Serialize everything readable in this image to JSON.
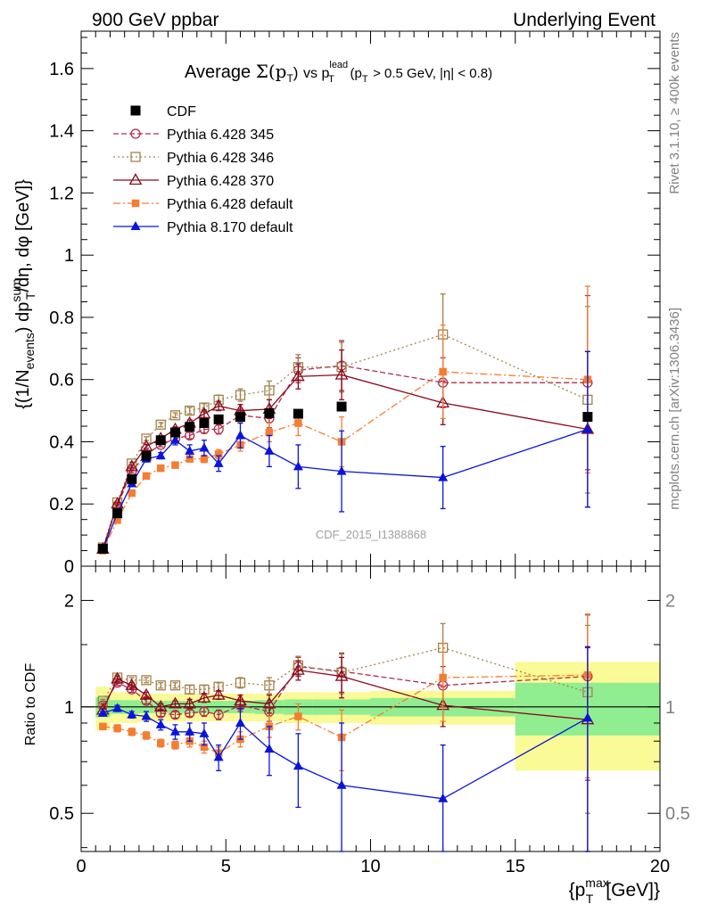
{
  "header": {
    "left": "900 GeV ppbar",
    "right": "Underlying Event"
  },
  "side_labels": {
    "rivet": "Rivet 3.1.10, ≥ 400k events",
    "mcplots": "mcplots.cern.ch [arXiv:1306.3436]"
  },
  "plot_title": {
    "prefix": "Average",
    "sigma": "Σ(p",
    "sigma_sub": "T",
    "sigma_close": ")",
    "vs": "vs p",
    "lead_sup": "lead",
    "lead_sub": "T",
    "cuts": "(p",
    "cuts_sub": "T",
    "cuts_rest": "> 0.5 GeV, |η| < 0.8)"
  },
  "watermark": "CDF_2015_I1388868",
  "ylabel_main": {
    "a": "{(1/N",
    "a_sub": "events",
    "b": ") dp",
    "b_sup": "sum",
    "b_sub": "T",
    "c": "/dη, dφ [GeV]}"
  },
  "ylabel_ratio": "Ratio to CDF",
  "xlabel": {
    "a": "{p",
    "a_sup": "max",
    "a_sub": "T",
    "b": "[GeV]}"
  },
  "colors": {
    "cdf": "#000000",
    "p345": "#b02c4a",
    "p346": "#a3824a",
    "p370": "#8b0a1e",
    "p6def": "#f57d32",
    "p8def": "#0a14dc",
    "band_inner": "#90ee90",
    "band_outer": "#fafa96"
  },
  "chart_data": {
    "type": "scatter",
    "x_range": [
      0,
      20
    ],
    "xticks": [
      0,
      5,
      10,
      15,
      20
    ],
    "main_ylim": [
      0,
      1.72
    ],
    "main_yticks": [
      0,
      0.2,
      0.4,
      0.6,
      0.8,
      1,
      1.2,
      1.4,
      1.6
    ],
    "main_ytick_labels": [
      "0",
      "0.2",
      "0.4",
      "0.6",
      "0.8",
      "1",
      "1.2",
      "1.4",
      "1.6"
    ],
    "ratio_ylim": [
      0.39,
      2.5
    ],
    "ratio_log": true,
    "ratio_yticks": [
      0.5,
      1,
      2
    ],
    "ratio_ytick_labels": [
      "0.5",
      "1",
      "2"
    ],
    "legend_position": "top-left",
    "data": {
      "name": "CDF",
      "x": [
        0.75,
        1.25,
        1.75,
        2.25,
        2.75,
        3.25,
        3.75,
        4.25,
        4.75,
        5.5,
        6.5,
        7.5,
        9.0
      ],
      "y": [
        0.056,
        0.17,
        0.28,
        0.355,
        0.405,
        0.43,
        0.448,
        0.46,
        0.472,
        0.48,
        0.492,
        0.49,
        0.513
      ]
    },
    "data_last": {
      "x": 17.5,
      "y": 0.48
    },
    "series": [
      {
        "name": "Pythia 6.428 345",
        "key": "p345",
        "marker": "circle-open",
        "dash": "6,3",
        "x": [
          0.75,
          1.25,
          1.75,
          2.25,
          2.75,
          3.25,
          3.75,
          4.25,
          4.75,
          5.5,
          6.5,
          7.5,
          9.0,
          12.5,
          17.5
        ],
        "y": [
          0.055,
          0.195,
          0.305,
          0.36,
          0.39,
          0.41,
          0.42,
          0.44,
          0.44,
          0.485,
          0.475,
          0.63,
          0.645,
          0.59,
          0.59
        ],
        "err": [
          0.002,
          0.004,
          0.005,
          0.006,
          0.006,
          0.008,
          0.01,
          0.012,
          0.015,
          0.02,
          0.03,
          0.04,
          0.08,
          0.08,
          0.28
        ],
        "ratio": [
          1.01,
          1.17,
          1.12,
          1.04,
          0.96,
          0.95,
          0.96,
          0.97,
          0.95,
          1.01,
          0.97,
          1.3,
          1.26,
          1.15,
          1.22
        ],
        "ratio_err": [
          0.01,
          0.02,
          0.02,
          0.02,
          0.02,
          0.02,
          0.02,
          0.03,
          0.03,
          0.04,
          0.06,
          0.08,
          0.16,
          0.15,
          0.6
        ]
      },
      {
        "name": "Pythia 6.428 346",
        "key": "p346",
        "marker": "square-open",
        "dash": "2,3",
        "x": [
          0.75,
          1.25,
          1.75,
          2.25,
          2.75,
          3.25,
          3.75,
          4.25,
          4.75,
          5.5,
          6.5,
          7.5,
          9.0,
          12.5,
          17.5
        ],
        "y": [
          0.06,
          0.205,
          0.33,
          0.41,
          0.455,
          0.485,
          0.5,
          0.51,
          0.535,
          0.55,
          0.565,
          0.64,
          0.64,
          0.745,
          0.535
        ],
        "err": [
          0.002,
          0.004,
          0.005,
          0.006,
          0.007,
          0.008,
          0.01,
          0.012,
          0.015,
          0.02,
          0.03,
          0.04,
          0.08,
          0.13,
          0.3
        ],
        "ratio": [
          1.04,
          1.21,
          1.19,
          1.19,
          1.15,
          1.15,
          1.12,
          1.12,
          1.14,
          1.17,
          1.15,
          1.31,
          1.25,
          1.47,
          1.1
        ],
        "ratio_err": [
          0.01,
          0.02,
          0.02,
          0.02,
          0.02,
          0.02,
          0.03,
          0.03,
          0.03,
          0.04,
          0.06,
          0.08,
          0.16,
          0.25,
          0.6
        ]
      },
      {
        "name": "Pythia 6.428 370",
        "key": "p370",
        "marker": "triangle-open",
        "dash": "",
        "x": [
          0.75,
          1.25,
          1.75,
          2.25,
          2.75,
          3.25,
          3.75,
          4.25,
          4.75,
          5.5,
          6.5,
          7.5,
          9.0,
          12.5,
          17.5
        ],
        "y": [
          0.055,
          0.2,
          0.32,
          0.385,
          0.41,
          0.44,
          0.46,
          0.49,
          0.515,
          0.5,
          0.505,
          0.61,
          0.615,
          0.525,
          0.44
        ],
        "err": [
          0.002,
          0.004,
          0.005,
          0.006,
          0.007,
          0.008,
          0.01,
          0.012,
          0.015,
          0.02,
          0.03,
          0.04,
          0.08,
          0.07,
          0.25
        ],
        "ratio": [
          0.98,
          1.2,
          1.15,
          1.08,
          1.0,
          1.02,
          1.02,
          1.06,
          1.08,
          1.04,
          1.02,
          1.27,
          1.22,
          1.01,
          0.92
        ],
        "ratio_err": [
          0.01,
          0.02,
          0.02,
          0.02,
          0.02,
          0.02,
          0.03,
          0.03,
          0.03,
          0.04,
          0.06,
          0.08,
          0.16,
          0.13,
          0.55
        ]
      },
      {
        "name": "Pythia 6.428 default",
        "key": "p6def",
        "marker": "square-filled",
        "dash": "8,3,2,3",
        "x": [
          0.75,
          1.25,
          1.75,
          2.25,
          2.75,
          3.25,
          3.75,
          4.25,
          4.75,
          5.5,
          6.5,
          7.5,
          9.0,
          12.5,
          17.5
        ],
        "y": [
          0.05,
          0.148,
          0.235,
          0.29,
          0.315,
          0.325,
          0.345,
          0.345,
          0.36,
          0.39,
          0.43,
          0.46,
          0.4,
          0.625,
          0.6
        ],
        "err": [
          0.002,
          0.004,
          0.005,
          0.006,
          0.007,
          0.008,
          0.01,
          0.012,
          0.015,
          0.02,
          0.03,
          0.04,
          0.08,
          0.15,
          0.3
        ],
        "ratio": [
          0.88,
          0.87,
          0.85,
          0.83,
          0.79,
          0.78,
          0.8,
          0.77,
          0.74,
          0.81,
          0.88,
          0.94,
          0.82,
          1.21,
          1.23
        ],
        "ratio_err": [
          0.01,
          0.02,
          0.02,
          0.02,
          0.02,
          0.02,
          0.03,
          0.03,
          0.03,
          0.04,
          0.06,
          0.08,
          0.16,
          0.3,
          0.6
        ]
      },
      {
        "name": "Pythia 8.170 default",
        "key": "p8def",
        "marker": "triangle-filled",
        "dash": "",
        "x": [
          0.75,
          1.25,
          1.75,
          2.25,
          2.75,
          3.25,
          3.75,
          4.25,
          4.75,
          5.5,
          6.5,
          7.5,
          9.0,
          12.5,
          17.5
        ],
        "y": [
          0.052,
          0.17,
          0.265,
          0.345,
          0.355,
          0.405,
          0.37,
          0.38,
          0.33,
          0.42,
          0.37,
          0.32,
          0.305,
          0.285,
          0.44
        ],
        "err": [
          0.002,
          0.004,
          0.005,
          0.01,
          0.01,
          0.015,
          0.02,
          0.025,
          0.025,
          0.04,
          0.05,
          0.07,
          0.13,
          0.1,
          0.25
        ],
        "ratio": [
          0.96,
          0.99,
          0.95,
          0.94,
          0.89,
          0.85,
          0.85,
          0.84,
          0.72,
          0.9,
          0.76,
          0.68,
          0.6,
          0.55,
          0.93
        ],
        "ratio_err": [
          0.01,
          0.02,
          0.02,
          0.03,
          0.03,
          0.04,
          0.05,
          0.06,
          0.06,
          0.09,
          0.12,
          0.16,
          0.3,
          0.23,
          0.55
        ]
      }
    ],
    "ratio_bands": [
      {
        "x0": 0.5,
        "x1": 1.0,
        "in": 0.065,
        "out": 0.14
      },
      {
        "x0": 1.0,
        "x1": 1.5,
        "in": 0.045,
        "out": 0.1
      },
      {
        "x0": 1.5,
        "x1": 2.0,
        "in": 0.045,
        "out": 0.1
      },
      {
        "x0": 2.0,
        "x1": 2.5,
        "in": 0.04,
        "out": 0.09
      },
      {
        "x0": 2.5,
        "x1": 3.0,
        "in": 0.04,
        "out": 0.09
      },
      {
        "x0": 3.0,
        "x1": 3.5,
        "in": 0.04,
        "out": 0.09
      },
      {
        "x0": 3.5,
        "x1": 4.0,
        "in": 0.04,
        "out": 0.09
      },
      {
        "x0": 4.0,
        "x1": 4.5,
        "in": 0.04,
        "out": 0.09
      },
      {
        "x0": 4.5,
        "x1": 5.0,
        "in": 0.04,
        "out": 0.09
      },
      {
        "x0": 5.0,
        "x1": 6.0,
        "in": 0.04,
        "out": 0.09
      },
      {
        "x0": 6.0,
        "x1": 7.0,
        "in": 0.045,
        "out": 0.09
      },
      {
        "x0": 7.0,
        "x1": 8.0,
        "in": 0.05,
        "out": 0.1
      },
      {
        "x0": 8.0,
        "x1": 10.0,
        "in": 0.05,
        "out": 0.1
      },
      {
        "x0": 10.0,
        "x1": 15.0,
        "in": 0.06,
        "out": 0.11
      },
      {
        "x0": 15.0,
        "x1": 20.0,
        "in": 0.17,
        "out": 0.34
      }
    ]
  }
}
